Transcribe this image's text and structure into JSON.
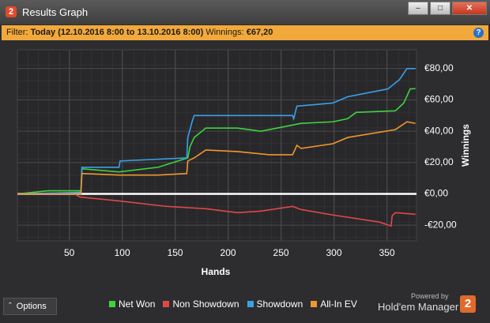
{
  "window": {
    "title": "Results Graph",
    "logo": "2"
  },
  "filter": {
    "label": "Filter:",
    "period": "Today (12.10.2016 8:00 to 13.10.2016 8:00)",
    "winnings_label": "Winnings:",
    "winnings_value": "€67,20",
    "help": "?"
  },
  "chart_data": {
    "type": "line",
    "xlabel": "Hands",
    "ylabel": "Winnings",
    "xlim": [
      1,
      378
    ],
    "ylim": [
      -30,
      92
    ],
    "xticks": [
      50,
      100,
      150,
      200,
      250,
      300,
      350
    ],
    "yticks": [
      {
        "value": -20,
        "label": "-€20,00"
      },
      {
        "value": 0,
        "label": "€0,00"
      },
      {
        "value": 20,
        "label": "€20,00"
      },
      {
        "value": 40,
        "label": "€40,00"
      },
      {
        "value": 60,
        "label": "€60,00"
      },
      {
        "value": 80,
        "label": "€80,00"
      }
    ],
    "grid": true,
    "series": [
      {
        "name": "Net Won",
        "color": "#3fd43f",
        "x": [
          1,
          30,
          61,
          62,
          97,
          134,
          162,
          164,
          168,
          179,
          209,
          231,
          254,
          269,
          299,
          313,
          321,
          358,
          366,
          372,
          377
        ],
        "values": [
          0,
          2,
          2,
          16,
          14,
          17,
          23,
          30,
          36,
          42,
          42,
          40,
          43,
          45,
          46,
          48,
          52,
          53,
          58,
          67,
          67.2
        ]
      },
      {
        "name": "Non Showdown",
        "color": "#e04848",
        "x": [
          1,
          55,
          60,
          97,
          142,
          179,
          209,
          231,
          261,
          269,
          299,
          343,
          354,
          355,
          358,
          377
        ],
        "values": [
          0,
          0,
          -2,
          -4.5,
          -8,
          -9.5,
          -12,
          -11,
          -8,
          -10,
          -13.5,
          -18,
          -20.5,
          -14,
          -12,
          -13
        ]
      },
      {
        "name": "Showdown",
        "color": "#3aa0e8",
        "x": [
          1,
          60,
          61,
          62,
          97,
          98,
          161,
          162,
          166,
          168,
          261,
          262,
          265,
          299,
          313,
          351,
          362,
          369,
          377
        ],
        "values": [
          0,
          1,
          1,
          17,
          17,
          21,
          23,
          36,
          46,
          50,
          50,
          48,
          56,
          58,
          62,
          67,
          73,
          80,
          80
        ]
      },
      {
        "name": "All-In EV",
        "color": "#f0962e",
        "x": [
          1,
          61,
          62,
          97,
          134,
          161,
          162,
          168,
          179,
          209,
          239,
          261,
          265,
          269,
          299,
          313,
          358,
          369,
          377
        ],
        "values": [
          0,
          0,
          13,
          12,
          12,
          13,
          21,
          23,
          28,
          27,
          25,
          25,
          31,
          29,
          32,
          36,
          41,
          46,
          45
        ]
      }
    ]
  },
  "footer": {
    "options": "Options",
    "powered_by": "Powered by",
    "brand": "Hold'em Manager",
    "logo": "2"
  }
}
